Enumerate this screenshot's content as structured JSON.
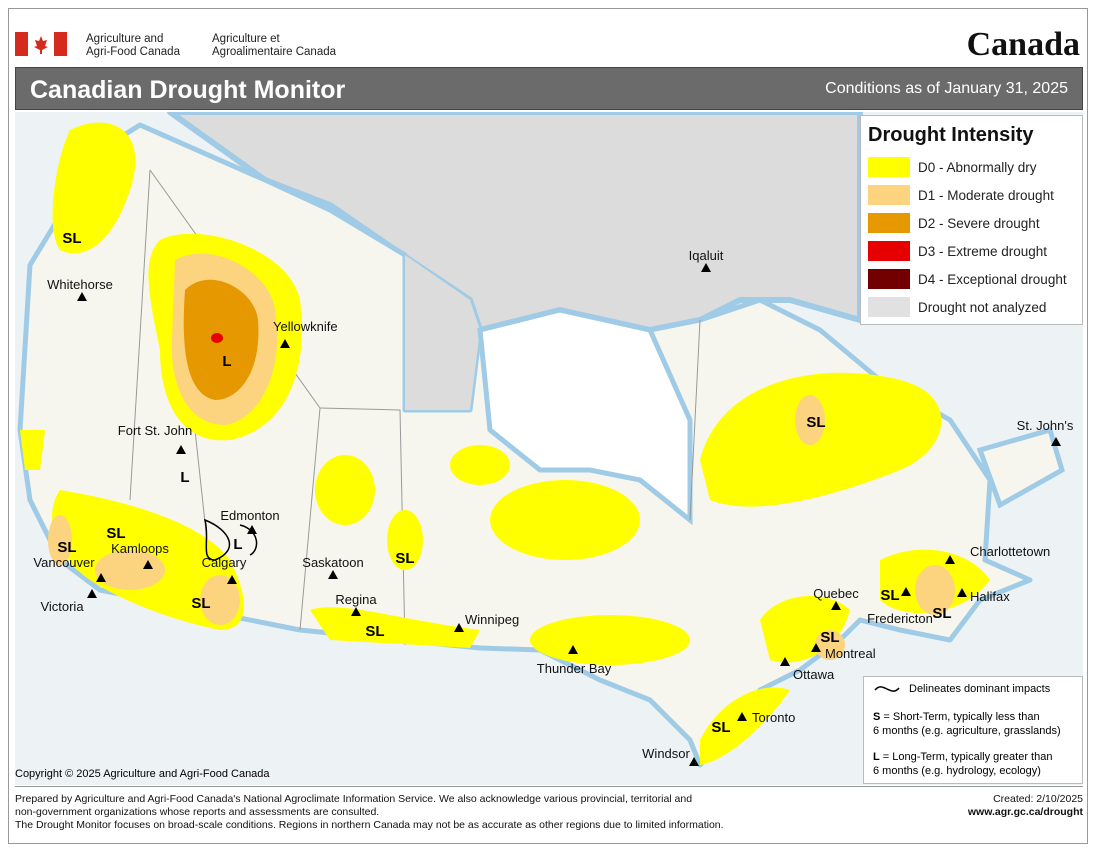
{
  "header": {
    "agency_en": [
      "Agriculture and",
      "Agri-Food Canada"
    ],
    "agency_fr": [
      "Agriculture et",
      "Agroalimentaire Canada"
    ],
    "wordmark": "Canada",
    "title": "Canadian Drought Monitor",
    "date": "Conditions as of January 31, 2025"
  },
  "legend": {
    "title": "Drought Intensity",
    "items": [
      {
        "label": "D0 - Abnormally dry",
        "color": "#ffff00"
      },
      {
        "label": "D1 - Moderate drought",
        "color": "#fcd37f"
      },
      {
        "label": "D2 - Severe drought",
        "color": "#e69800"
      },
      {
        "label": "D3 - Extreme drought",
        "color": "#e60000"
      },
      {
        "label": "D4 - Exceptional drought",
        "color": "#730000"
      },
      {
        "label": "Drought not analyzed",
        "color": "#e1e1e1"
      }
    ]
  },
  "cities": [
    "Whitehorse",
    "Yellowknife",
    "Iqaluit",
    "Fort St. John",
    "Edmonton",
    "Kamloops",
    "Vancouver",
    "Victoria",
    "Calgary",
    "Saskatoon",
    "Regina",
    "Winnipeg",
    "Thunder Bay",
    "Quebec",
    "Montreal",
    "Ottawa",
    "Toronto",
    "Windsor",
    "Fredericton",
    "Halifax",
    "Charlottetown",
    "St. John's"
  ],
  "impact_labels": [
    "SL",
    "L",
    "L",
    "SL",
    "SL",
    "L",
    "SL",
    "SL",
    "SL",
    "SL",
    "SL",
    "SL",
    "SL",
    "SL"
  ],
  "notes": {
    "delineates": "Delineates dominant impacts",
    "short": {
      "letter": "S",
      "text": "= Short-Term, typically less than",
      "text2": "6 months (e.g. agriculture, grasslands)"
    },
    "long": {
      "letter": "L",
      "text": "= Long-Term, typically greater  than",
      "text2": "6 months (e.g. hydrology, ecology)"
    }
  },
  "copyright": "Copyright © 2025 Agriculture and Agri-Food Canada",
  "footer": {
    "lines": [
      "Prepared by Agriculture and Agri-Food Canada's National Agroclimate Information Service.  We also acknowledge various provincial, territorial and",
      "non-government organizations whose reports and assessments are consulted.",
      "The Drought Monitor focuses on broad-scale conditions.  Regions in northern Canada may not be as accurate as other regions due to limited information."
    ],
    "created": "Created: 2/10/2025",
    "url": "www.agr.gc.ca/drought"
  }
}
